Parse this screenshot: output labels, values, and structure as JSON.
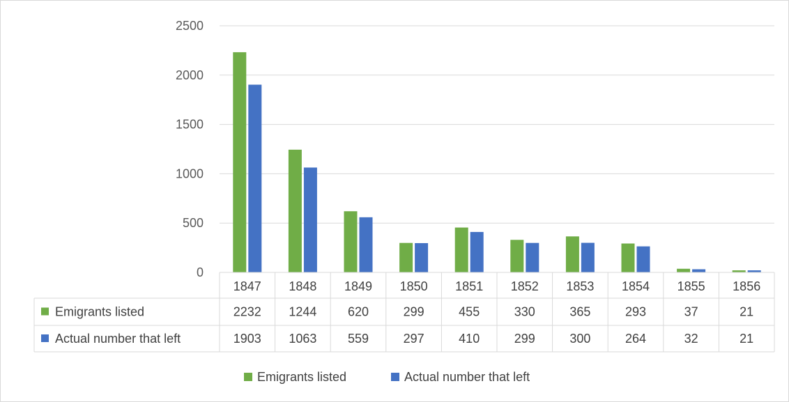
{
  "chart_data": {
    "type": "bar",
    "categories": [
      "1847",
      "1848",
      "1849",
      "1850",
      "1851",
      "1852",
      "1853",
      "1854",
      "1855",
      "1856"
    ],
    "series": [
      {
        "name": "Emigrants listed",
        "color": "#70ad47",
        "values": [
          2232,
          1244,
          620,
          299,
          455,
          330,
          365,
          293,
          37,
          21
        ]
      },
      {
        "name": "Actual number that left",
        "color": "#4472c4",
        "values": [
          1903,
          1063,
          559,
          297,
          410,
          299,
          300,
          264,
          32,
          21
        ]
      }
    ],
    "yticks": [
      "0",
      "500",
      "1000",
      "1500",
      "2000",
      "2500"
    ],
    "ylim": [
      0,
      2500
    ],
    "grid": true,
    "data_table": true,
    "legend_position": "bottom"
  }
}
